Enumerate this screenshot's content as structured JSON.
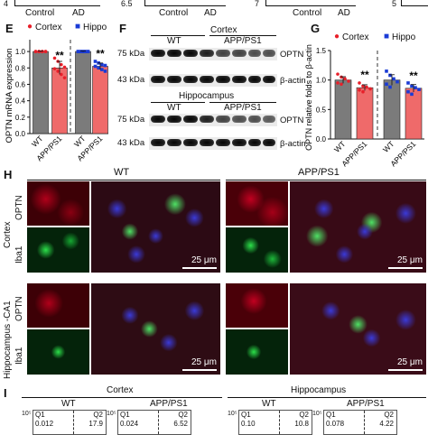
{
  "top_fragments": {
    "left": {
      "tick": "4",
      "labels": [
        "Control",
        "AD"
      ]
    },
    "mid": {
      "tick": "6.5",
      "labels": [
        "Control",
        "AD"
      ]
    },
    "right": {
      "tick": "7",
      "labels": [
        "Control",
        "AD"
      ]
    },
    "far_right": {
      "tick": "5"
    }
  },
  "panel_E": {
    "letter": "E",
    "legend": [
      {
        "label": "Cortex",
        "color": "#e8202a"
      },
      {
        "label": "Hippo",
        "color": "#1a3bd6"
      }
    ],
    "ylabel": "OPTN mRNA expression",
    "yticks": [
      "0.0",
      "0.2",
      "0.4",
      "0.6",
      "0.8",
      "1.0"
    ],
    "categories": [
      "WT",
      "APP/PS1",
      "WT",
      "APP/PS1"
    ],
    "significance": [
      "**",
      "**"
    ]
  },
  "panel_F": {
    "letter": "F",
    "cortex_label": "Cortex",
    "hippocampus_label": "Hippocampus",
    "group_labels": [
      "WT",
      "APP/PS1"
    ],
    "kda_labels": [
      "75 kDa",
      "43 kDa"
    ],
    "protein_labels": [
      "OPTN",
      "β-actin"
    ]
  },
  "panel_G": {
    "letter": "G",
    "legend": [
      {
        "label": "Cortex",
        "color": "#e8202a"
      },
      {
        "label": "Hippo",
        "color": "#1a3bd6"
      }
    ],
    "ylabel": "OPTN relative folds to β-actin",
    "yticks": [
      "0.0",
      "0.5",
      "1.0",
      "1.5"
    ],
    "categories": [
      "WT",
      "APP/PS1",
      "WT",
      "APP/PS1"
    ],
    "significance": [
      "**",
      "**"
    ]
  },
  "panel_H": {
    "letter": "H",
    "col_labels": [
      "WT",
      "APP/PS1"
    ],
    "row_labels": [
      "Cortex",
      "Hippocampus -CA1"
    ],
    "channel_labels": [
      "OPTN",
      "Iba1"
    ],
    "scale_text": "25 μm"
  },
  "panel_I": {
    "letter": "I",
    "region_labels": [
      "Cortex",
      "Hippocampus"
    ],
    "group_labels": [
      "WT",
      "APP/PS1",
      "WT",
      "APP/PS1"
    ],
    "quadrants": [
      {
        "q1": "Q1",
        "q1v": "0.012",
        "q2": "Q2",
        "q2v": "17.9"
      },
      {
        "q1": "Q1",
        "q1v": "0.024",
        "q2": "Q2",
        "q2v": "6.52"
      },
      {
        "q1": "Q1",
        "q1v": "0.10",
        "q2": "Q2",
        "q2v": "10.8"
      },
      {
        "q1": "Q1",
        "q1v": "0.078",
        "q2": "Q2",
        "q2v": "4.22"
      }
    ],
    "axis_tick": "10⁵"
  },
  "chart_data": [
    {
      "type": "bar",
      "panel": "E",
      "ylabel": "OPTN mRNA expression",
      "ylim": [
        0,
        1.1
      ],
      "categories": [
        "WT",
        "APP/PS1",
        "WT",
        "APP/PS1"
      ],
      "groups": [
        "Cortex",
        "Cortex",
        "Hippo",
        "Hippo"
      ],
      "values": [
        1.0,
        0.8,
        1.0,
        0.82
      ],
      "bar_colors": [
        "#7b7b7b",
        "#ef6a6a",
        "#7b7b7b",
        "#ef6a6a"
      ],
      "points": [
        [
          1.0,
          1.0,
          1.0,
          1.0,
          1.0,
          1.0,
          1.0,
          1.0
        ],
        [
          0.92,
          0.88,
          0.84,
          0.81,
          0.79,
          0.76,
          0.72,
          0.68
        ],
        [
          1.0,
          1.0,
          1.0,
          1.0,
          1.0,
          1.0,
          1.0,
          1.0
        ],
        [
          0.88,
          0.86,
          0.84,
          0.83,
          0.82,
          0.8,
          0.78,
          0.76
        ]
      ],
      "grid": false
    },
    {
      "type": "bar",
      "panel": "G",
      "ylabel": "OPTN relative folds to β-actin",
      "ylim": [
        0,
        1.5
      ],
      "categories": [
        "WT",
        "APP/PS1",
        "WT",
        "APP/PS1"
      ],
      "groups": [
        "Cortex",
        "Cortex",
        "Hippo",
        "Hippo"
      ],
      "values": [
        1.0,
        0.87,
        1.0,
        0.86
      ],
      "bar_colors": [
        "#7b7b7b",
        "#ef6a6a",
        "#7b7b7b",
        "#ef6a6a"
      ],
      "points": [
        [
          1.1,
          1.05,
          1.02,
          0.98,
          0.95,
          0.93
        ],
        [
          0.95,
          0.9,
          0.88,
          0.85,
          0.83,
          0.8
        ],
        [
          1.15,
          1.08,
          1.02,
          0.97,
          0.93,
          0.88
        ],
        [
          0.95,
          0.9,
          0.87,
          0.84,
          0.8,
          0.76
        ]
      ],
      "grid": false
    }
  ]
}
